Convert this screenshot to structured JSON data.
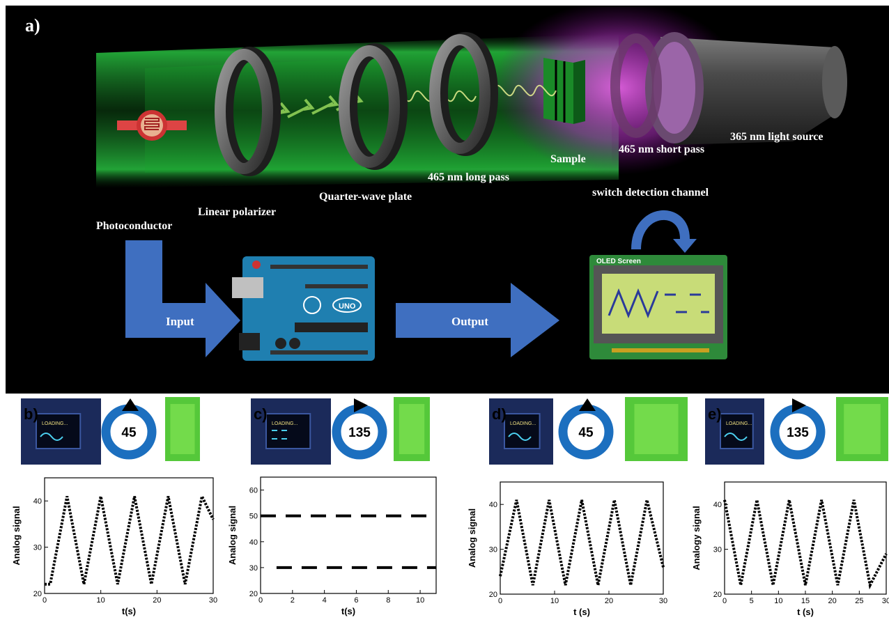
{
  "panel_a": {
    "label": "a)",
    "components": {
      "light_source": "365 nm light source",
      "short_pass": "465 nm short pass",
      "sample": "Sample",
      "long_pass": "465 nm long pass",
      "quarter_wave": "Quarter-wave plate",
      "linear_polarizer": "Linear polarizer",
      "photoconductor": "Photoconductor",
      "switch": "switch detection channel",
      "input": "Input",
      "output": "Output",
      "oled_title": "OLED Screen",
      "arduino_label": "UNO",
      "display_text": "LOADING..."
    },
    "colors": {
      "beam": "#2fd84a",
      "uv_glow": "#d040d0",
      "arrow": "#3f6fc0",
      "board": "#1f7fb0"
    }
  },
  "panels": [
    {
      "label": "b)",
      "angle": "45",
      "rotation": "counter-clockwise",
      "screen_text": "LOADING..."
    },
    {
      "label": "c)",
      "angle": "135",
      "rotation": "clockwise",
      "screen_text": "LOADING..."
    },
    {
      "label": "d)",
      "angle": "45",
      "rotation": "counter-clockwise",
      "screen_text": "LOADING..."
    },
    {
      "label": "e)",
      "angle": "135",
      "rotation": "clockwise",
      "screen_text": "LOADING..."
    }
  ],
  "chart_data": [
    {
      "type": "line",
      "xlabel": "t(s)",
      "ylabel": "Analog signal",
      "xlim": [
        0,
        30
      ],
      "ylim": [
        20,
        45
      ],
      "xticks": [
        "0",
        "10",
        "20",
        "30"
      ],
      "yticks": [
        "20",
        "30",
        "40"
      ],
      "pattern": "triangle-dotted",
      "x": [
        0,
        1,
        4,
        7,
        10,
        13,
        16,
        19,
        22,
        25,
        28,
        30
      ],
      "y": [
        22,
        22,
        41,
        22,
        41,
        22,
        41,
        22,
        41,
        22,
        41,
        36
      ]
    },
    {
      "type": "line",
      "xlabel": "t(s)",
      "ylabel": "Analog signal",
      "xlim": [
        0,
        11
      ],
      "ylim": [
        20,
        65
      ],
      "xticks": [
        "0",
        "2",
        "4",
        "6",
        "8",
        "10"
      ],
      "yticks": [
        "20",
        "30",
        "40",
        "50",
        "60"
      ],
      "pattern": "dashed-levels",
      "series": [
        {
          "x": [
            0,
            11
          ],
          "y": [
            50,
            50
          ]
        },
        {
          "x": [
            1,
            11
          ],
          "y": [
            30,
            30
          ]
        }
      ]
    },
    {
      "type": "line",
      "xlabel": "t (s)",
      "ylabel": "Analog signal",
      "xlim": [
        0,
        30
      ],
      "ylim": [
        20,
        45
      ],
      "xticks": [
        "0",
        "10",
        "20",
        "30"
      ],
      "yticks": [
        "20",
        "30",
        "40"
      ],
      "pattern": "triangle-dotted",
      "x": [
        0,
        3,
        6,
        9,
        12,
        15,
        18,
        21,
        24,
        27,
        30
      ],
      "y": [
        24,
        41,
        22,
        41,
        22,
        41,
        22,
        41,
        22,
        41,
        26
      ]
    },
    {
      "type": "line",
      "xlabel": "t (s)",
      "ylabel": "Analogy signal",
      "xlim": [
        0,
        30
      ],
      "ylim": [
        20,
        45
      ],
      "xticks": [
        "0",
        "5",
        "10",
        "15",
        "20",
        "25",
        "30"
      ],
      "yticks": [
        "20",
        "30",
        "40"
      ],
      "pattern": "triangle-dotted",
      "x": [
        0,
        3,
        6,
        9,
        12,
        15,
        18,
        21,
        24,
        27,
        30
      ],
      "y": [
        41,
        22,
        41,
        22,
        41,
        22,
        41,
        22,
        41,
        22,
        29
      ]
    }
  ]
}
